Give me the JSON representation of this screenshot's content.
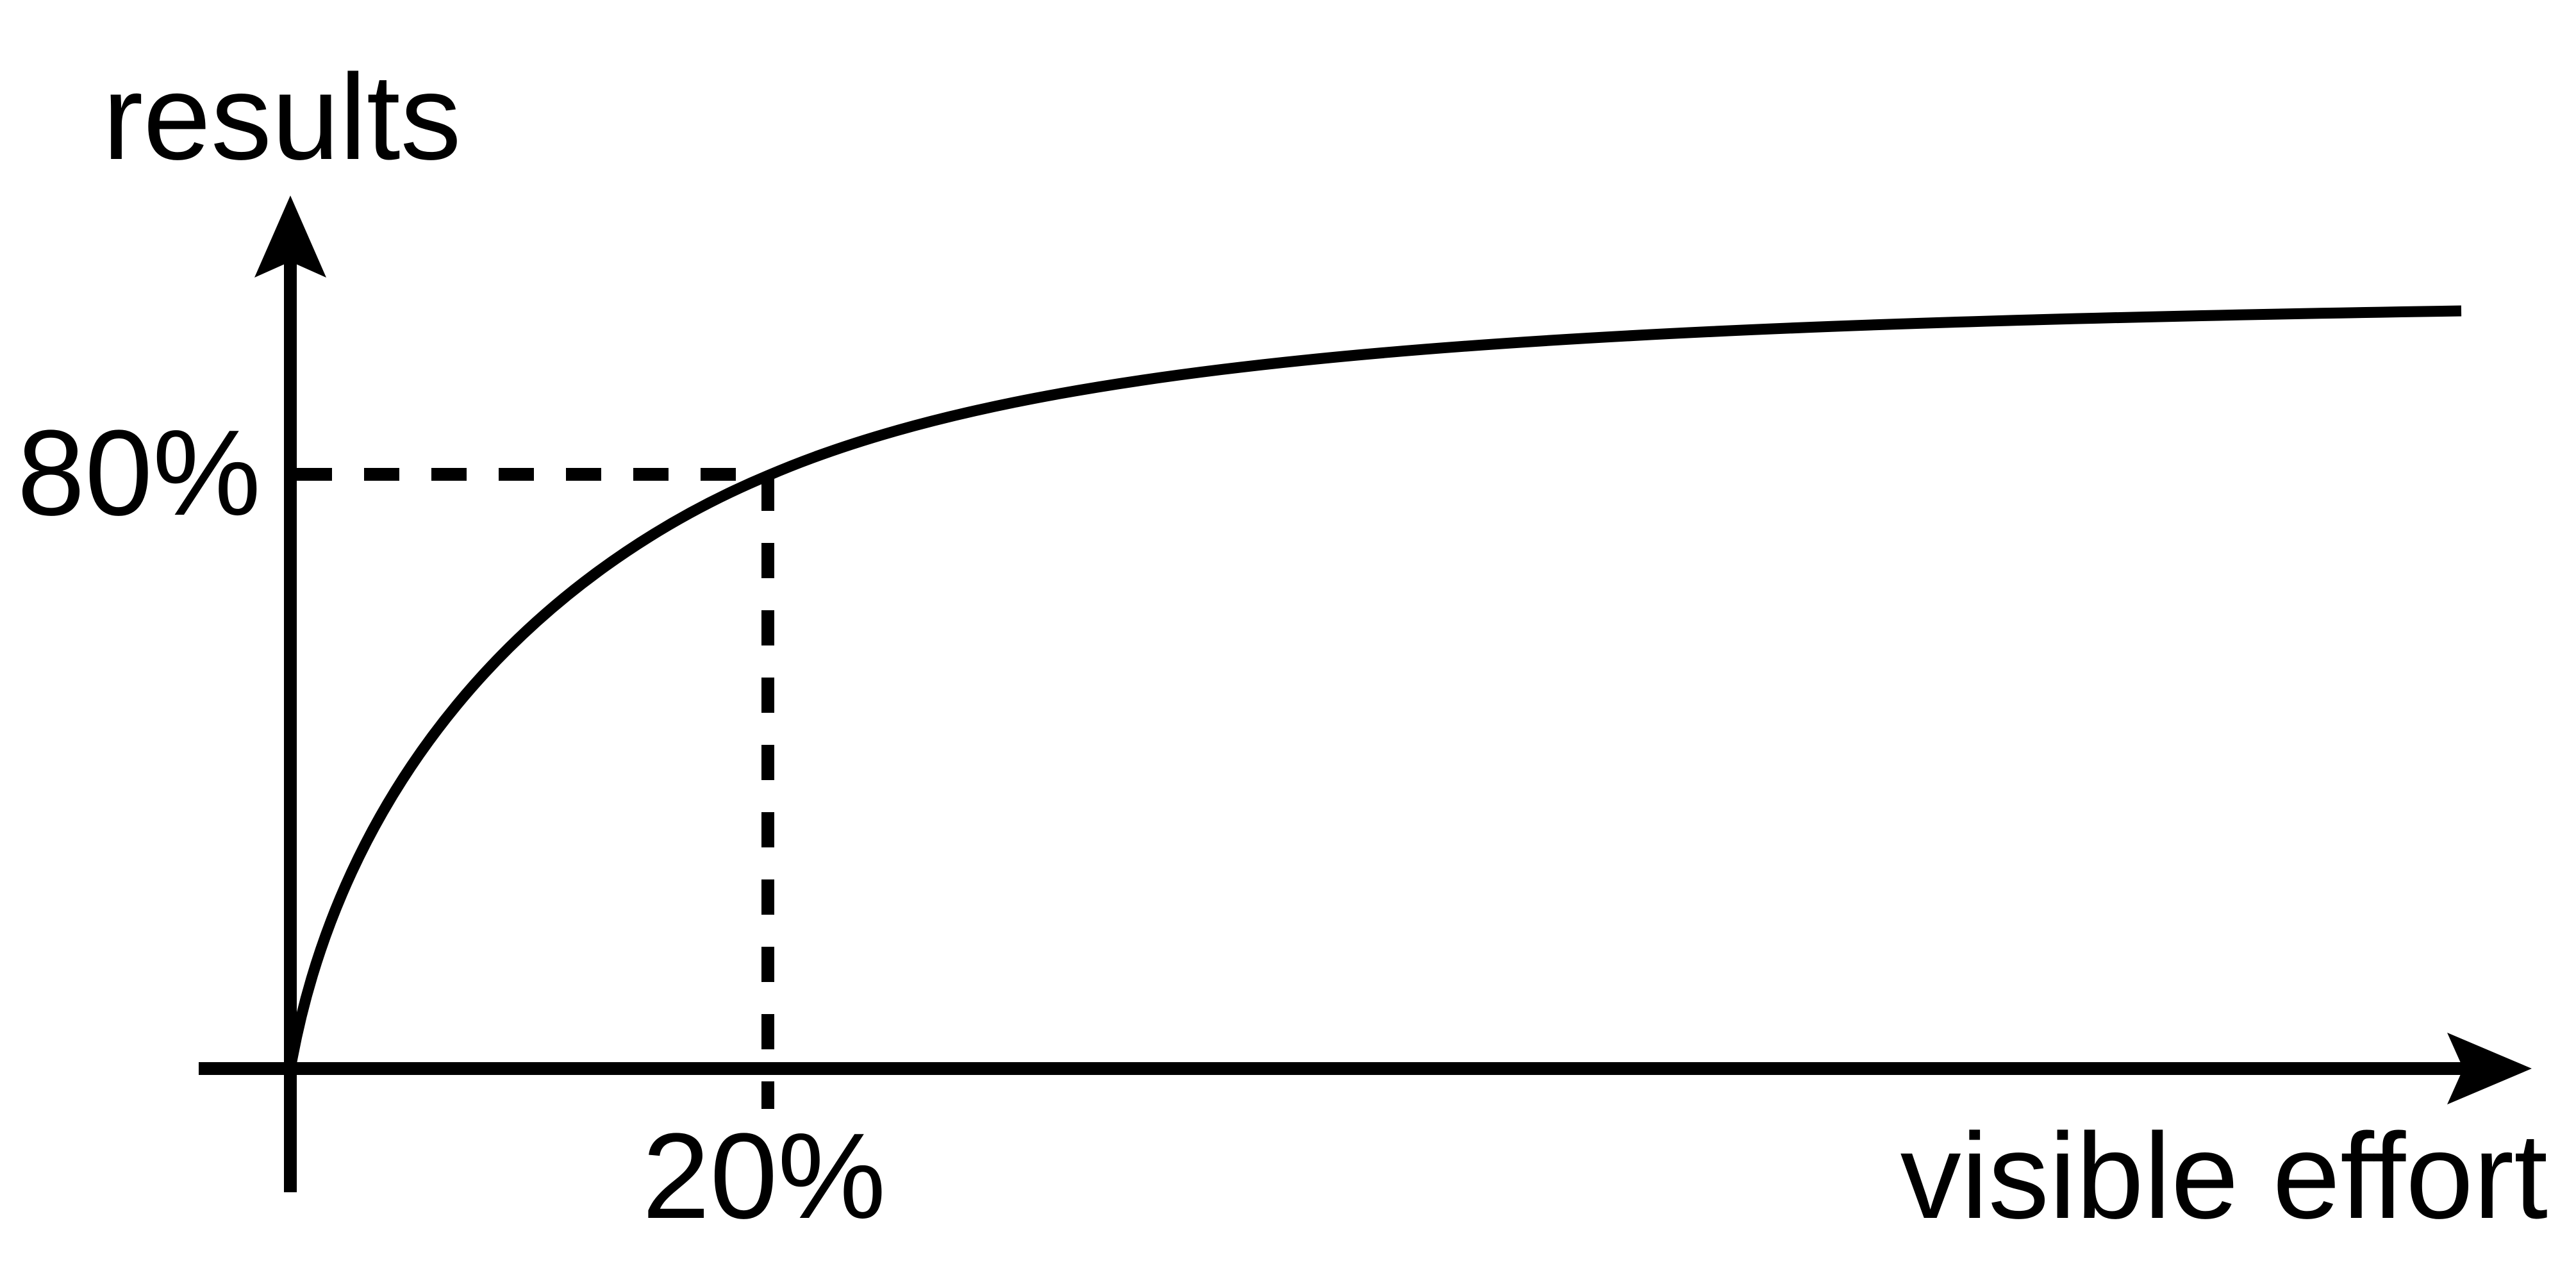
{
  "labels": {
    "y_axis": "results",
    "x_axis": "visible effort",
    "y_marker": "80%",
    "x_marker": "20%"
  },
  "style": {
    "line_color": "#000000",
    "background": "#ffffff"
  }
}
